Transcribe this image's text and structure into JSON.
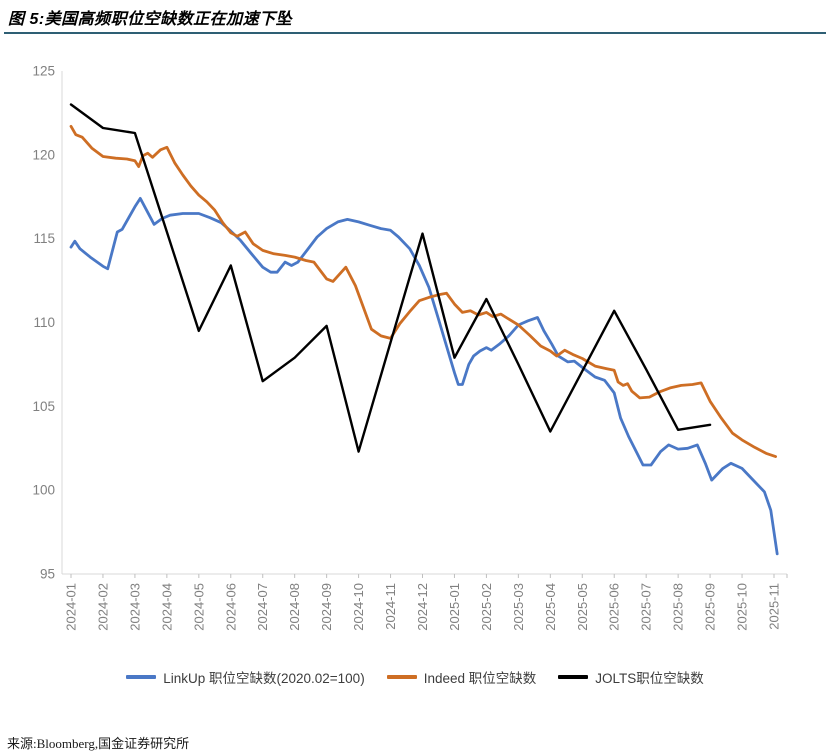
{
  "header": {
    "title": "图 5:美国高频职位空缺数正在加速下坠"
  },
  "style": {
    "underline_color": "#2e5f74"
  },
  "chart_data": {
    "type": "line",
    "title": "图 5:美国高频职位空缺数正在加速下坠",
    "xlabel": "",
    "ylabel": "",
    "ylim": [
      95,
      125
    ],
    "yticks": [
      95,
      100,
      105,
      110,
      115,
      120,
      125
    ],
    "grid": false,
    "legend_position": "bottom",
    "axis_color": "#d9d9d9",
    "tick_color": "#bfbfbf",
    "tick_label_color": "#808080",
    "categories": [
      "2024-01",
      "2024-02",
      "2024-03",
      "2024-04",
      "2024-05",
      "2024-06",
      "2024-07",
      "2024-08",
      "2024-09",
      "2024-10",
      "2024-11",
      "2024-12",
      "2025-01",
      "2025-02",
      "2025-03",
      "2025-04",
      "2025-05",
      "2025-06",
      "2025-07",
      "2025-08",
      "2025-09",
      "2025-10",
      "2025-11"
    ],
    "x_unit": "month index into categories (fractions = intra-month high-frequency readings)",
    "series": [
      {
        "id": "linkup",
        "name": "LinkUp 职位空缺数(2020.02=100)",
        "color": "#4a78c6",
        "width": 2.8,
        "x": [
          0,
          0.12,
          0.28,
          0.6,
          1.0,
          1.15,
          1.45,
          1.6,
          2.0,
          2.17,
          2.35,
          2.6,
          2.85,
          3.1,
          3.5,
          4.0,
          4.35,
          4.7,
          5.0,
          5.3,
          5.65,
          6.0,
          6.25,
          6.45,
          6.7,
          6.9,
          7.1,
          7.4,
          7.7,
          8.0,
          8.35,
          8.65,
          9.0,
          9.35,
          9.7,
          10.0,
          10.25,
          10.6,
          10.9,
          11.2,
          11.5,
          11.75,
          12.0,
          12.12,
          12.25,
          12.45,
          12.6,
          12.8,
          13.0,
          13.15,
          13.4,
          13.7,
          14.0,
          14.3,
          14.6,
          14.8,
          15.05,
          15.25,
          15.55,
          15.75,
          16.05,
          16.4,
          16.7,
          17.0,
          17.2,
          17.45,
          17.9,
          18.15,
          18.45,
          18.7,
          19.0,
          19.3,
          19.6,
          19.85,
          20.05,
          20.4,
          20.65,
          21.0,
          21.35,
          21.7,
          21.9,
          22.1
        ],
        "values": [
          114.5,
          114.85,
          114.4,
          113.9,
          113.35,
          113.2,
          115.4,
          115.55,
          116.9,
          117.4,
          116.75,
          115.85,
          116.2,
          116.4,
          116.5,
          116.5,
          116.25,
          115.95,
          115.45,
          114.9,
          114.1,
          113.3,
          113.0,
          113.0,
          113.6,
          113.4,
          113.6,
          114.35,
          115.1,
          115.6,
          116.0,
          116.15,
          116.0,
          115.8,
          115.6,
          115.5,
          115.1,
          114.4,
          113.4,
          112.1,
          110.2,
          108.6,
          107.0,
          106.3,
          106.3,
          107.5,
          108.0,
          108.3,
          108.5,
          108.35,
          108.7,
          109.2,
          109.85,
          110.1,
          110.3,
          109.5,
          108.7,
          108.0,
          107.65,
          107.7,
          107.25,
          106.75,
          106.55,
          105.8,
          104.3,
          103.2,
          101.5,
          101.5,
          102.3,
          102.7,
          102.45,
          102.5,
          102.7,
          101.6,
          100.6,
          101.3,
          101.6,
          101.3,
          100.6,
          99.9,
          98.8,
          96.2
        ]
      },
      {
        "id": "indeed",
        "name": "Indeed 职位空缺数",
        "color": "#ce6e24",
        "width": 2.8,
        "x": [
          0,
          0.15,
          0.35,
          0.65,
          1.0,
          1.4,
          1.75,
          2.0,
          2.12,
          2.25,
          2.4,
          2.55,
          2.8,
          3.0,
          3.25,
          3.5,
          3.75,
          4.0,
          4.25,
          4.5,
          4.75,
          5.0,
          5.2,
          5.45,
          5.7,
          6.0,
          6.35,
          6.7,
          7.0,
          7.35,
          7.6,
          8.0,
          8.2,
          8.6,
          8.9,
          9.15,
          9.4,
          9.7,
          10.0,
          10.3,
          10.6,
          10.9,
          11.2,
          11.5,
          11.75,
          12.0,
          12.25,
          12.5,
          12.75,
          13.0,
          13.2,
          13.45,
          13.7,
          14.0,
          14.35,
          14.7,
          15.0,
          15.2,
          15.45,
          15.7,
          16.0,
          16.4,
          16.75,
          17.0,
          17.12,
          17.28,
          17.42,
          17.55,
          17.8,
          18.1,
          18.4,
          18.75,
          19.1,
          19.45,
          19.72,
          20.0,
          20.35,
          20.7,
          21.0,
          21.4,
          21.75,
          22.05
        ],
        "values": [
          121.7,
          121.2,
          121.05,
          120.4,
          119.9,
          119.8,
          119.75,
          119.65,
          119.3,
          119.95,
          120.1,
          119.85,
          120.3,
          120.45,
          119.5,
          118.8,
          118.15,
          117.6,
          117.2,
          116.7,
          115.95,
          115.35,
          115.15,
          115.4,
          114.7,
          114.3,
          114.1,
          114.0,
          113.9,
          113.7,
          113.6,
          112.6,
          112.45,
          113.3,
          112.2,
          110.9,
          109.6,
          109.2,
          109.05,
          109.95,
          110.65,
          111.3,
          111.5,
          111.65,
          111.75,
          111.1,
          110.6,
          110.7,
          110.45,
          110.6,
          110.35,
          110.5,
          110.2,
          109.85,
          109.25,
          108.6,
          108.3,
          108.0,
          108.35,
          108.1,
          107.85,
          107.4,
          107.25,
          107.15,
          106.45,
          106.25,
          106.35,
          105.9,
          105.5,
          105.55,
          105.85,
          106.1,
          106.25,
          106.3,
          106.4,
          105.3,
          104.3,
          103.4,
          103.0,
          102.55,
          102.2,
          102.0
        ]
      },
      {
        "id": "jolts",
        "name": "JOLTS职位空缺数",
        "color": "#000000",
        "width": 2.4,
        "x": [
          0,
          1,
          2,
          3,
          4,
          5,
          6,
          7,
          8,
          9,
          10,
          11,
          12,
          13,
          14,
          15,
          16,
          17,
          18,
          19,
          20
        ],
        "values": [
          123.0,
          121.6,
          121.3,
          115.4,
          109.5,
          113.4,
          106.5,
          107.9,
          109.8,
          102.3,
          108.8,
          115.3,
          107.9,
          111.4,
          107.5,
          103.5,
          107.1,
          110.7,
          107.2,
          103.6,
          103.9
        ]
      }
    ]
  },
  "footer": {
    "source": "来源:Bloomberg,国金证券研究所"
  }
}
